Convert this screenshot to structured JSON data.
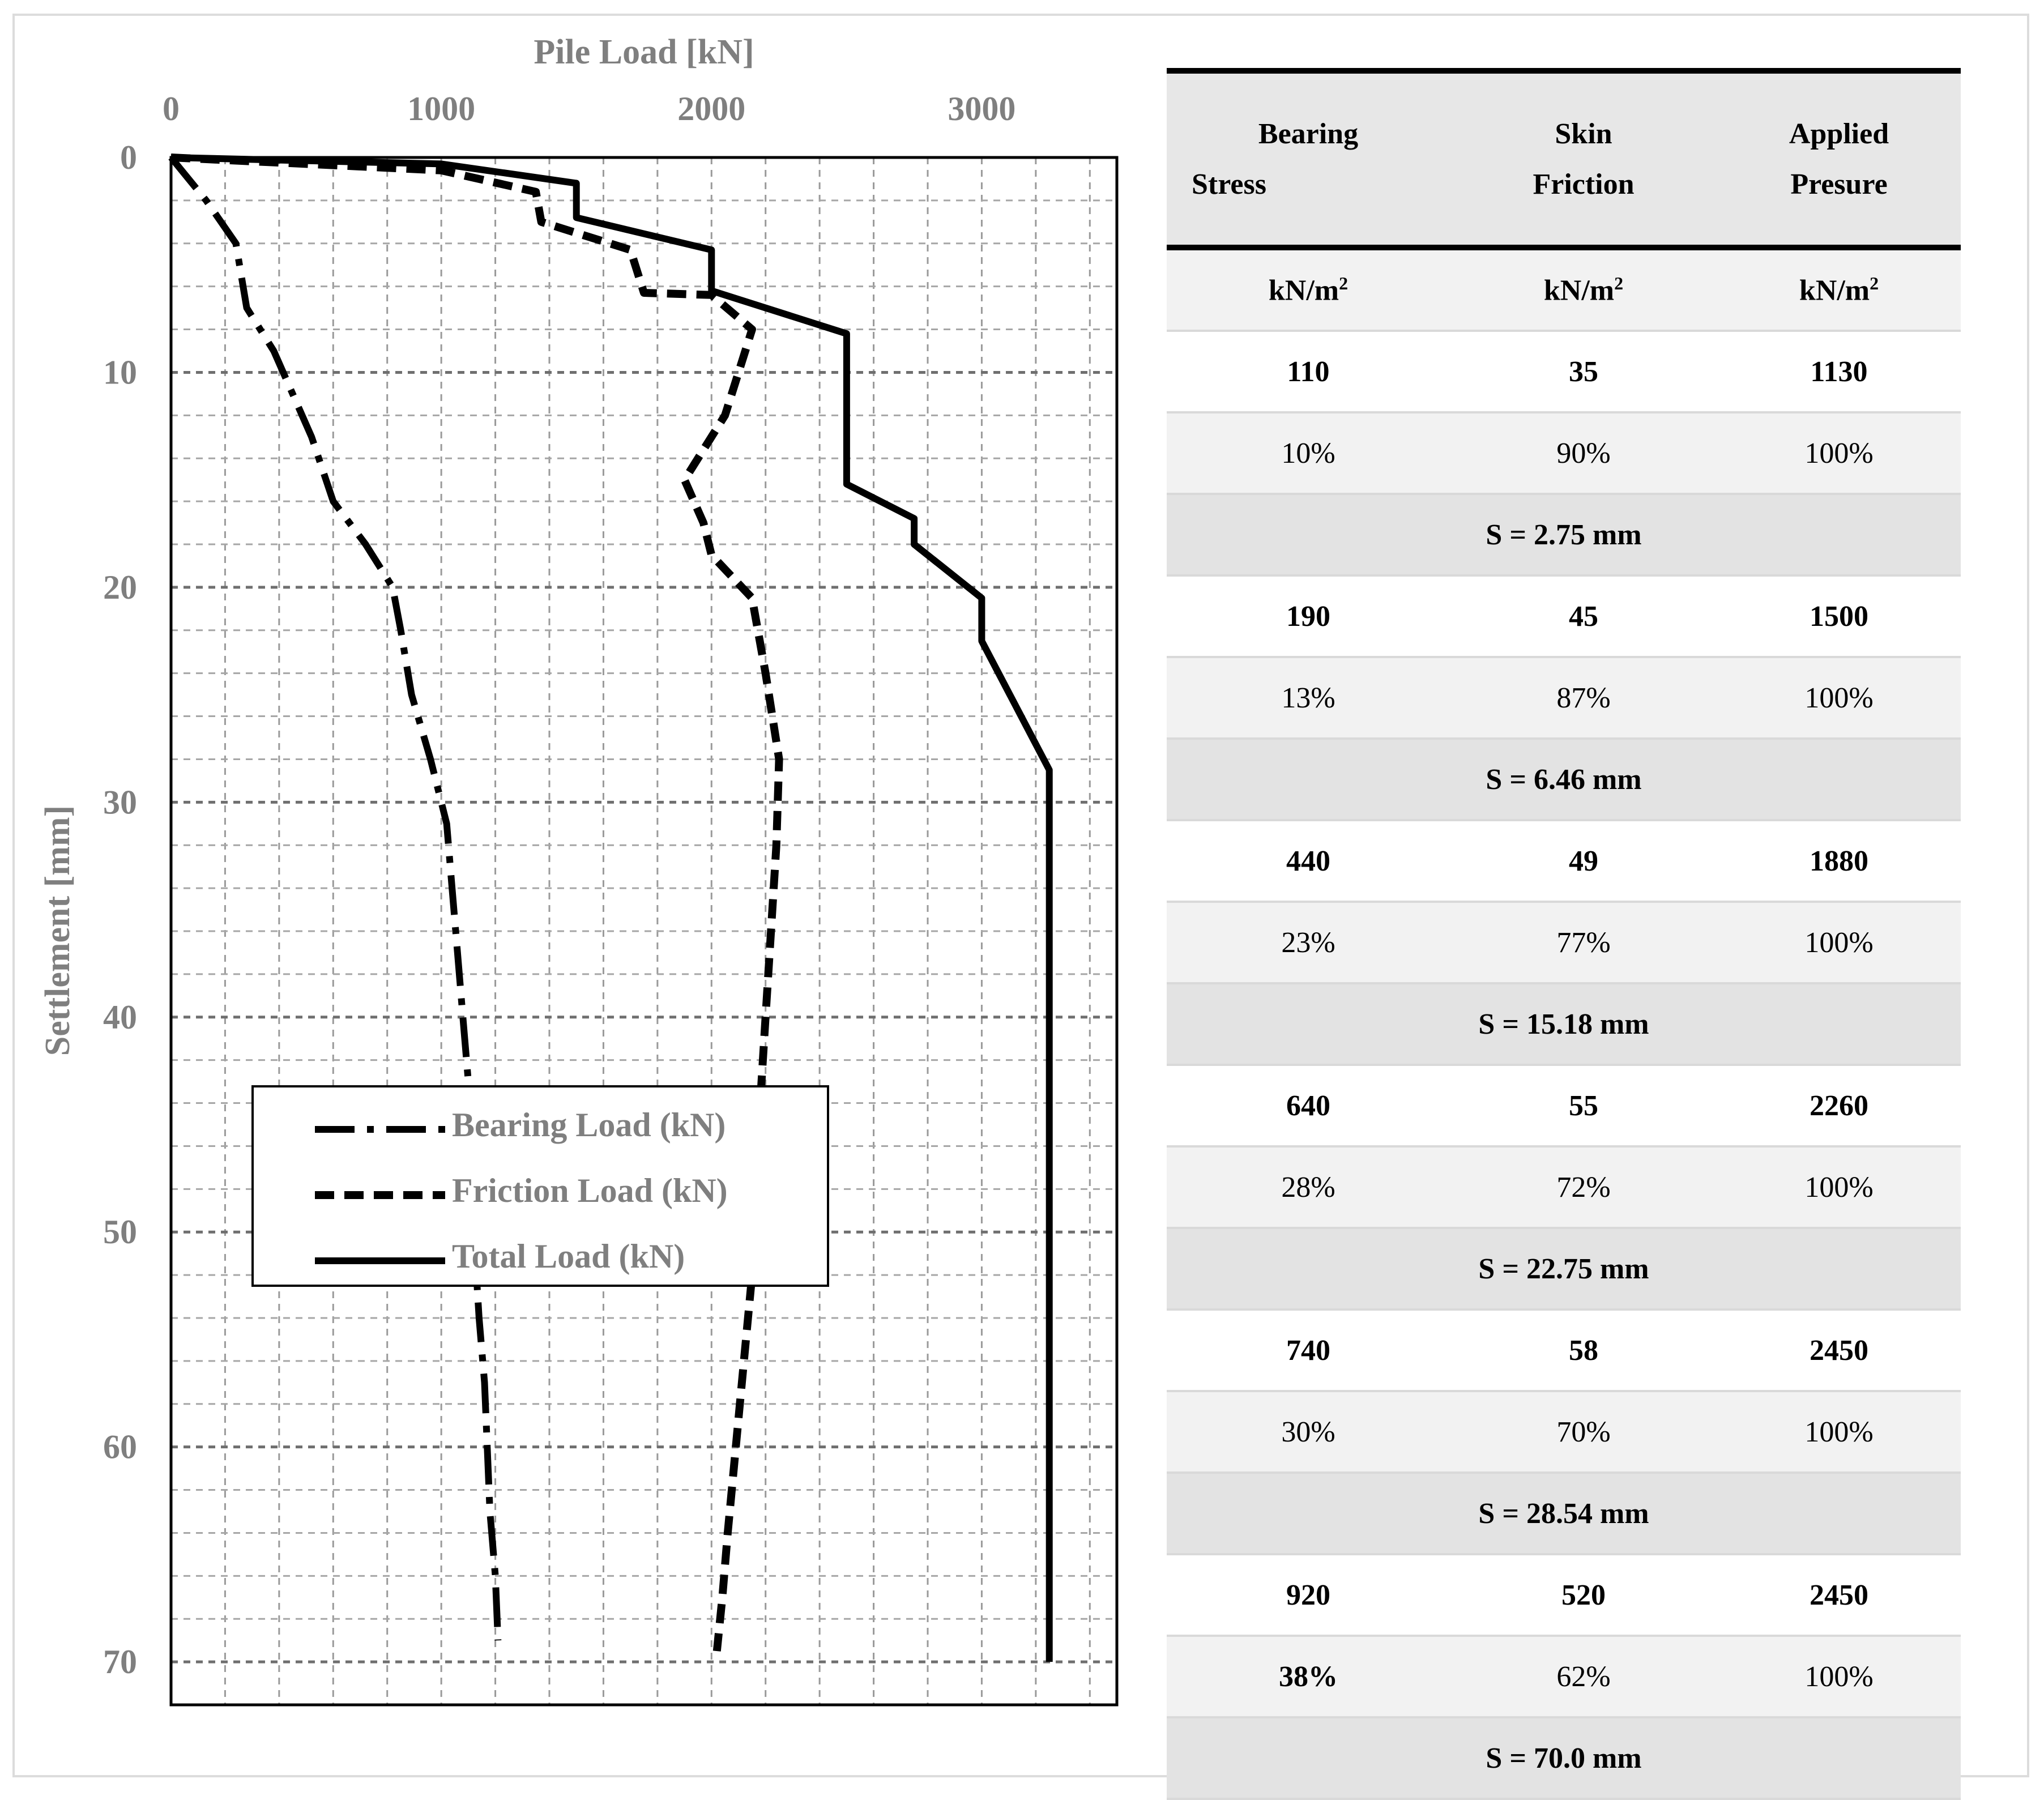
{
  "chart_data": {
    "type": "line",
    "title": "",
    "xlabel": "Pile Load [kN]",
    "ylabel": "Settlement [mm]",
    "xlim": [
      0,
      3500
    ],
    "ylim": [
      0,
      72
    ],
    "y_inverted": true,
    "x_axis_position": "top",
    "x_ticks": [
      "0",
      "1000",
      "2000",
      "3000"
    ],
    "y_ticks": [
      "0",
      "10",
      "20",
      "30",
      "40",
      "50",
      "60",
      "70"
    ],
    "grid": true,
    "legend_position": "lower-left",
    "series": [
      {
        "name": "Bearing Load (kN)",
        "style": "dash-dot",
        "points": [
          [
            0,
            0
          ],
          [
            130,
            2
          ],
          [
            240,
            4
          ],
          [
            280,
            7
          ],
          [
            380,
            9
          ],
          [
            520,
            13
          ],
          [
            600,
            16
          ],
          [
            720,
            18
          ],
          [
            820,
            20
          ],
          [
            850,
            22
          ],
          [
            890,
            25
          ],
          [
            960,
            28
          ],
          [
            1020,
            31
          ],
          [
            1040,
            34
          ],
          [
            1060,
            37
          ],
          [
            1080,
            40
          ],
          [
            1100,
            43
          ],
          [
            1110,
            46
          ],
          [
            1120,
            50
          ],
          [
            1130,
            52
          ],
          [
            1140,
            54
          ],
          [
            1160,
            57
          ],
          [
            1170,
            60
          ],
          [
            1180,
            63
          ],
          [
            1200,
            66
          ],
          [
            1210,
            69
          ]
        ]
      },
      {
        "name": "Friction Load (kN)",
        "style": "dashed",
        "points": [
          [
            0,
            0
          ],
          [
            1000,
            0.6
          ],
          [
            1350,
            1.6
          ],
          [
            1370,
            3
          ],
          [
            1700,
            4.3
          ],
          [
            1750,
            6.3
          ],
          [
            2000,
            6.4
          ],
          [
            2150,
            8
          ],
          [
            2050,
            12
          ],
          [
            1900,
            15
          ],
          [
            1970,
            17
          ],
          [
            2000,
            18.5
          ],
          [
            2150,
            20.5
          ],
          [
            2200,
            24
          ],
          [
            2250,
            28
          ],
          [
            2240,
            32
          ],
          [
            2220,
            36
          ],
          [
            2200,
            40
          ],
          [
            2180,
            44
          ],
          [
            2170,
            48
          ],
          [
            2150,
            52
          ],
          [
            2120,
            56
          ],
          [
            2090,
            60
          ],
          [
            2060,
            64
          ],
          [
            2040,
            67
          ],
          [
            2020,
            69.5
          ]
        ]
      },
      {
        "name": "Total Load (kN)",
        "style": "solid",
        "points": [
          [
            0,
            0
          ],
          [
            1000,
            0.3
          ],
          [
            1500,
            1.2
          ],
          [
            1500,
            2.8
          ],
          [
            2000,
            4.3
          ],
          [
            2000,
            6.2
          ],
          [
            2500,
            8.2
          ],
          [
            2500,
            15.2
          ],
          [
            2750,
            16.8
          ],
          [
            2750,
            18
          ],
          [
            3000,
            20.5
          ],
          [
            3000,
            22.5
          ],
          [
            3250,
            28.5
          ],
          [
            3250,
            70
          ]
        ]
      }
    ]
  },
  "table": {
    "headers": [
      {
        "line1": "Bearing",
        "line2": "Stress",
        "unit": "kN/m",
        "unit_sup": "2"
      },
      {
        "line1": "Skin",
        "line2": "Friction",
        "unit": "kN/m",
        "unit_sup": "2"
      },
      {
        "line1": "Applied",
        "line2": "Presure",
        "unit": "kN/m",
        "unit_sup": "2"
      }
    ],
    "groups": [
      {
        "values": [
          "110",
          "35",
          "1130"
        ],
        "percents": [
          "10%",
          "90%",
          "100%"
        ],
        "settlement": "S = 2.75 mm"
      },
      {
        "values": [
          "190",
          "45",
          "1500"
        ],
        "percents": [
          "13%",
          "87%",
          "100%"
        ],
        "settlement": "S = 6.46 mm"
      },
      {
        "values": [
          "440",
          "49",
          "1880"
        ],
        "percents": [
          "23%",
          "77%",
          "100%"
        ],
        "settlement": "S = 15.18 mm"
      },
      {
        "values": [
          "640",
          "55",
          "2260"
        ],
        "percents": [
          "28%",
          "72%",
          "100%"
        ],
        "settlement": "S = 22.75 mm"
      },
      {
        "values": [
          "740",
          "58",
          "2450"
        ],
        "percents": [
          "30%",
          "70%",
          "100%"
        ],
        "settlement": "S = 28.54 mm"
      },
      {
        "values": [
          "920",
          "520",
          "2450"
        ],
        "percents": [
          "38%",
          "62%",
          "100%"
        ],
        "settlement": "S = 70.0 mm"
      }
    ]
  }
}
